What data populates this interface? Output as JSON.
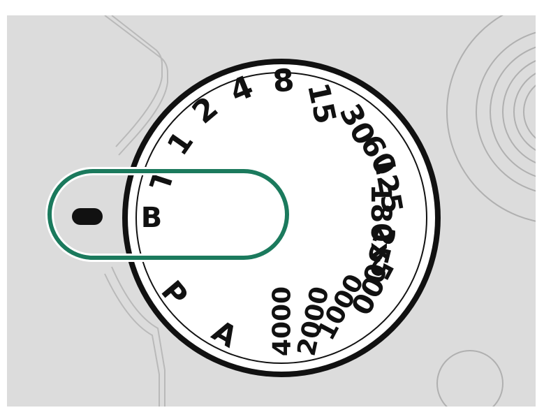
{
  "colors": {
    "frame": "#ffffff",
    "body": "#dcdcdc",
    "body_line": "#b9b9b9",
    "dial_face": "#ffffff",
    "dial_ink": "#111111",
    "highlight": "#1b7a5d"
  },
  "dial": {
    "selected": "B",
    "labels": [
      {
        "id": "b",
        "text": "B"
      },
      {
        "id": "t",
        "text": "T"
      },
      {
        "id": "1",
        "text": "1"
      },
      {
        "id": "2",
        "text": "2"
      },
      {
        "id": "4",
        "text": "4"
      },
      {
        "id": "8",
        "text": "8"
      },
      {
        "id": "15",
        "text": "15"
      },
      {
        "id": "30",
        "text": "30"
      },
      {
        "id": "60",
        "text": "60"
      },
      {
        "id": "125",
        "text": "125"
      },
      {
        "id": "180x",
        "text": "180x"
      },
      {
        "id": "250",
        "text": "250"
      },
      {
        "id": "500",
        "text": "500"
      },
      {
        "id": "1000",
        "text": "1000"
      },
      {
        "id": "2000",
        "text": "2000"
      },
      {
        "id": "4000",
        "text": "4000"
      },
      {
        "id": "a",
        "text": "A"
      },
      {
        "id": "p",
        "text": "P"
      }
    ]
  },
  "icons": {
    "index_mark": "index-mark-icon"
  }
}
